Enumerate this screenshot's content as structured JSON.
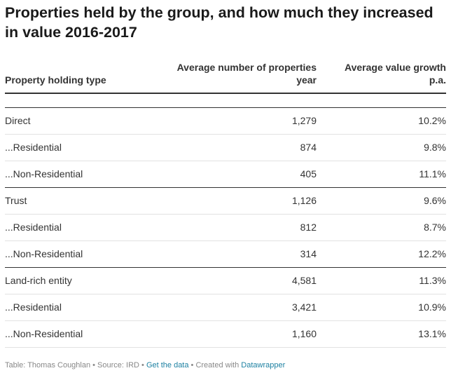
{
  "chart_data": {
    "type": "table",
    "title": "Properties held by the group, and how much they increased in value 2016-2017",
    "columns": [
      {
        "label": "Property holding type"
      },
      {
        "label": "Average number of properties year"
      },
      {
        "label": "Average value growth p.a."
      }
    ],
    "rows": [
      {
        "type": "Direct",
        "count": "1,279",
        "growth": "10.2%",
        "group_end": false
      },
      {
        "type": "...Residential",
        "count": "874",
        "growth": "9.8%",
        "group_end": false
      },
      {
        "type": "...Non-Residential",
        "count": "405",
        "growth": "11.1%",
        "group_end": true
      },
      {
        "type": "Trust",
        "count": "1,126",
        "growth": "9.6%",
        "group_end": false
      },
      {
        "type": "...Residential",
        "count": "812",
        "growth": "8.7%",
        "group_end": false
      },
      {
        "type": "...Non-Residential",
        "count": "314",
        "growth": "12.2%",
        "group_end": true
      },
      {
        "type": "Land-rich entity",
        "count": "4,581",
        "growth": "11.3%",
        "group_end": false
      },
      {
        "type": "...Residential",
        "count": "3,421",
        "growth": "10.9%",
        "group_end": false
      },
      {
        "type": "...Non-Residential",
        "count": "1,160",
        "growth": "13.1%",
        "group_end": false
      }
    ]
  },
  "footer": {
    "prefix": "Table: Thomas Coughlan • Source: IRD • ",
    "get_data_link": "Get the data",
    "middle": " • Created with ",
    "datawrapper_link": "Datawrapper"
  }
}
